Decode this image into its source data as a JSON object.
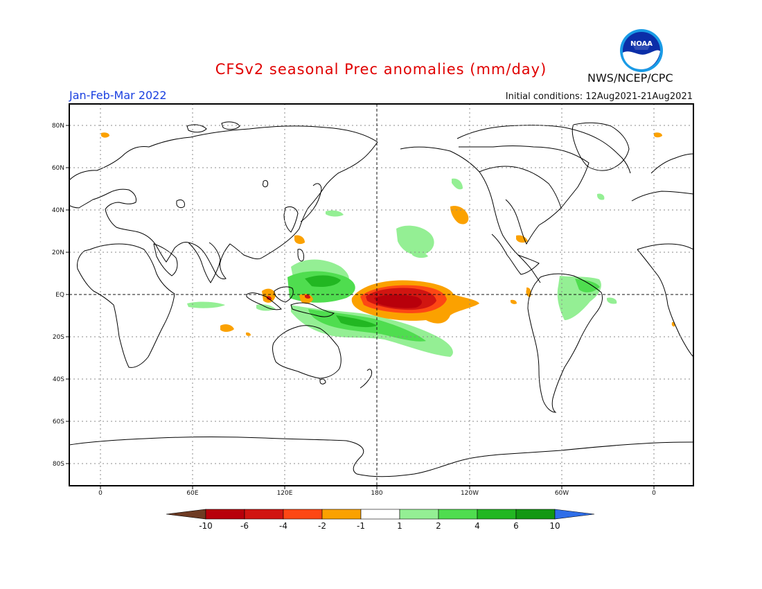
{
  "header": {
    "title": "CFSv2 seasonal Prec anomalies (mm/day)",
    "period": "Jan-Feb-Mar 2022",
    "initial_conditions": "Initial conditions: 12Aug2021-21Aug2021",
    "agency": "NWS/NCEP/CPC",
    "logo_text": "NOAA"
  },
  "map": {
    "lon_labels": [
      "0",
      "60E",
      "120E",
      "180",
      "120W",
      "60W",
      "0"
    ],
    "lat_labels": [
      "80N",
      "60N",
      "40N",
      "20N",
      "EQ",
      "20S",
      "40S",
      "60S",
      "80S"
    ]
  },
  "colorbar": {
    "labels": [
      "-10",
      "-6",
      "-4",
      "-2",
      "-1",
      "1",
      "2",
      "4",
      "6",
      "10"
    ],
    "colors": [
      "#6e3b23",
      "#b8000b",
      "#d11511",
      "#fd4714",
      "#fba100",
      "#ffffff",
      "#94ef94",
      "#4fdd4f",
      "#22b722",
      "#129812",
      "#2f6ee8"
    ]
  },
  "colors": {
    "title": "#e00000",
    "period": "#1a40e0"
  }
}
